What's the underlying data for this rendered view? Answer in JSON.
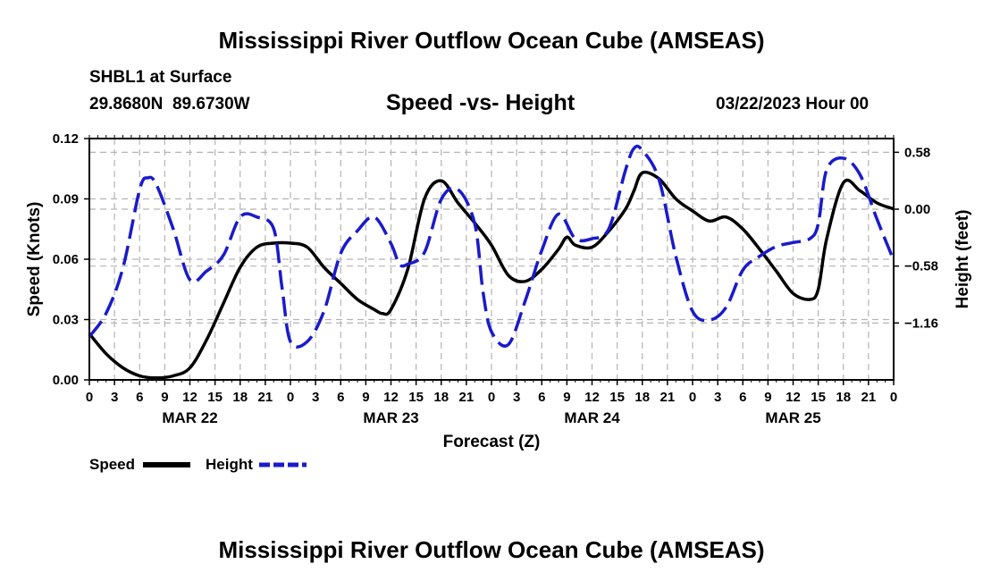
{
  "page": {
    "title": "Mississippi River Outflow Ocean Cube (AMSEAS)",
    "station": "SHBL1 at Surface",
    "coords": "29.8680N  89.6730W",
    "subtitle": "Speed -vs- Height",
    "date": "03/22/2023 Hour 00",
    "footer_title": "Mississippi River Outflow Ocean Cube (AMSEAS)"
  },
  "chart_data": {
    "type": "line",
    "title": "Speed -vs- Height",
    "xlabel": "Forecast (Z)",
    "ylabel": "Speed (Knots)",
    "y2label": "Height (feet)",
    "xlim": [
      0,
      96
    ],
    "ylim": [
      0,
      0.12
    ],
    "y2lim": [
      -1.74,
      0.72
    ],
    "grid": true,
    "x_ticks": [
      0,
      3,
      6,
      9,
      12,
      15,
      18,
      21,
      24,
      27,
      30,
      33,
      36,
      39,
      42,
      45,
      48,
      51,
      54,
      57,
      60,
      63,
      66,
      69,
      72,
      75,
      78,
      81,
      84,
      87,
      90,
      93,
      96
    ],
    "x_tick_labels": [
      "0",
      "3",
      "6",
      "9",
      "12",
      "15",
      "18",
      "21",
      "0",
      "3",
      "6",
      "9",
      "12",
      "15",
      "18",
      "21",
      "0",
      "3",
      "6",
      "9",
      "12",
      "15",
      "18",
      "21",
      "0",
      "3",
      "6",
      "9",
      "12",
      "15",
      "18",
      "21",
      "0"
    ],
    "day_labels": [
      {
        "x": 12,
        "label": "MAR 22"
      },
      {
        "x": 36,
        "label": "MAR 23"
      },
      {
        "x": 60,
        "label": "MAR 24"
      },
      {
        "x": 84,
        "label": "MAR 25"
      }
    ],
    "y_ticks": [
      0,
      0.03,
      0.06,
      0.09,
      0.12
    ],
    "y_tick_labels": [
      "0.00",
      "0.03",
      "0.06",
      "0.09",
      "0.12"
    ],
    "y2_ticks": [
      -1.16,
      -0.58,
      0.0,
      0.58
    ],
    "y2_tick_labels": [
      "−1.16",
      "−0.58",
      "0.00",
      "0.58"
    ],
    "legend": "bottom-left",
    "series": [
      {
        "name": "Speed",
        "axis": "left",
        "color": "#000000",
        "style": "solid",
        "x": [
          0,
          2,
          4,
          6,
          8,
          10,
          12,
          14,
          16,
          18,
          20,
          22,
          24,
          26,
          28,
          30,
          32,
          34,
          35,
          36,
          38,
          40,
          42,
          44,
          46,
          48,
          50,
          52,
          54,
          56,
          57,
          58,
          60,
          62,
          64,
          65,
          66,
          68,
          70,
          72,
          74,
          76,
          78,
          80,
          82,
          84,
          86,
          87,
          88,
          90,
          92,
          94,
          96
        ],
        "y": [
          0.023,
          0.013,
          0.006,
          0.002,
          0.001,
          0.002,
          0.006,
          0.02,
          0.038,
          0.056,
          0.066,
          0.068,
          0.068,
          0.066,
          0.056,
          0.048,
          0.04,
          0.035,
          0.033,
          0.035,
          0.055,
          0.09,
          0.099,
          0.088,
          0.078,
          0.067,
          0.052,
          0.049,
          0.055,
          0.065,
          0.071,
          0.067,
          0.066,
          0.074,
          0.085,
          0.094,
          0.103,
          0.1,
          0.09,
          0.084,
          0.079,
          0.081,
          0.075,
          0.065,
          0.054,
          0.043,
          0.04,
          0.045,
          0.07,
          0.098,
          0.094,
          0.088,
          0.085
        ]
      },
      {
        "name": "Height",
        "axis": "right",
        "color": "#1a1acc",
        "style": "dashed",
        "x": [
          0,
          2,
          4,
          6,
          7,
          8,
          10,
          12,
          14,
          16,
          18,
          20,
          22,
          23,
          24,
          26,
          28,
          30,
          32,
          34,
          36,
          37,
          38,
          40,
          42,
          44,
          46,
          47,
          48,
          50,
          52,
          54,
          56,
          58,
          60,
          62,
          64,
          65,
          66,
          68,
          70,
          72,
          74,
          76,
          78,
          80,
          82,
          84,
          86,
          87,
          88,
          90,
          92,
          94,
          96
        ],
        "y": [
          -1.3,
          -1.06,
          -0.6,
          0.2,
          0.32,
          0.25,
          -0.2,
          -0.72,
          -0.63,
          -0.47,
          -0.08,
          -0.08,
          -0.2,
          -0.8,
          -1.35,
          -1.35,
          -1.04,
          -0.45,
          -0.22,
          -0.08,
          -0.35,
          -0.56,
          -0.56,
          -0.44,
          0.1,
          0.2,
          -0.15,
          -0.85,
          -1.25,
          -1.38,
          -0.94,
          -0.42,
          -0.05,
          -0.3,
          -0.3,
          -0.2,
          0.4,
          0.62,
          0.6,
          0.3,
          -0.48,
          -1.04,
          -1.13,
          -1.0,
          -0.62,
          -0.48,
          -0.38,
          -0.34,
          -0.3,
          -0.15,
          0.4,
          0.52,
          0.35,
          -0.1,
          -0.52
        ]
      }
    ]
  }
}
